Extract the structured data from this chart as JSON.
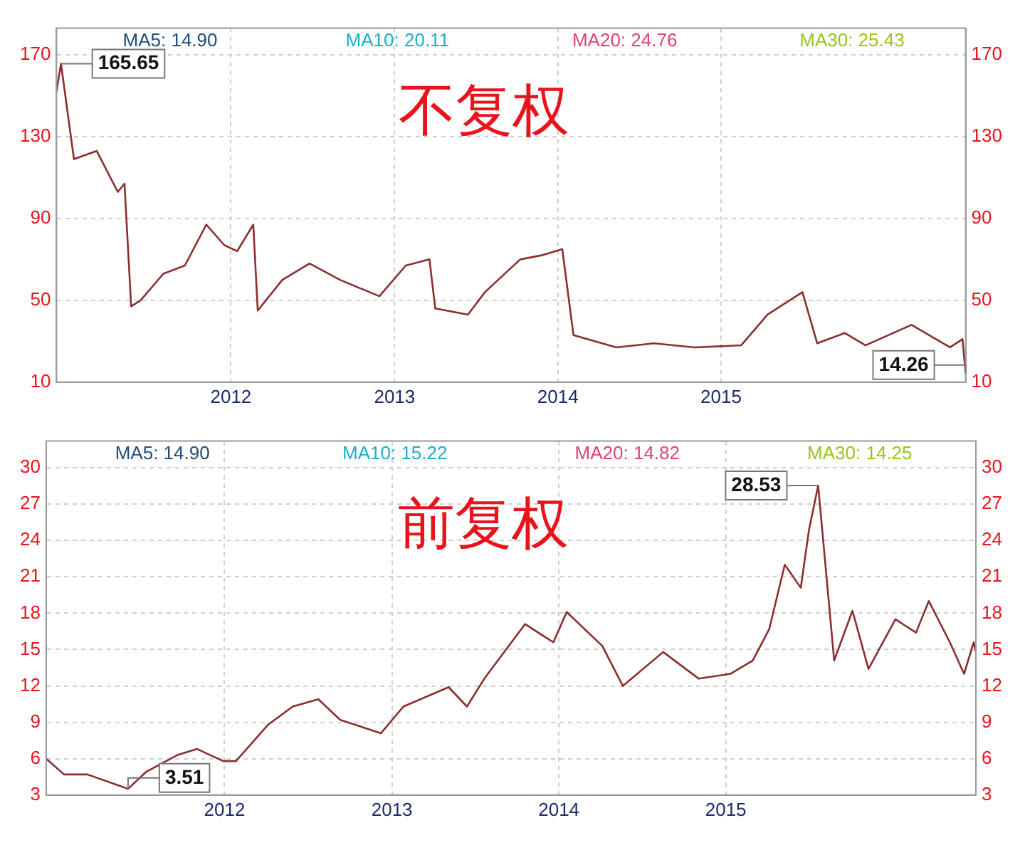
{
  "chart_data": [
    {
      "type": "line",
      "title": "不复权",
      "xlim": [
        "2010-12-07",
        "2016-07-01"
      ],
      "xticks": [
        "2012",
        "2013",
        "2014",
        "2015"
      ],
      "ylim": [
        10,
        183
      ],
      "yticks": [
        10,
        50,
        90,
        130,
        170
      ],
      "y2lim": [
        10,
        183
      ],
      "y2ticks": [
        10,
        50,
        90,
        130,
        170
      ],
      "grid": true,
      "legend": false,
      "marker": "none",
      "series": [
        {
          "color": "#8b2e2e",
          "x": [
            "2010-12-07",
            "2010-12-17",
            "2011-01-15",
            "2011-03-07",
            "2011-04-23",
            "2011-05-08",
            "2011-05-23",
            "2011-06-13",
            "2011-08-03",
            "2011-09-20",
            "2011-11-07",
            "2011-12-17",
            "2012-01-15",
            "2012-02-20",
            "2012-03-01",
            "2012-04-25",
            "2012-06-25",
            "2012-09-01",
            "2012-11-28",
            "2013-01-26",
            "2013-03-20",
            "2013-04-02",
            "2013-06-14",
            "2013-07-22",
            "2013-10-09",
            "2013-11-26",
            "2014-01-11",
            "2014-02-05",
            "2014-05-12",
            "2014-08-04",
            "2014-11-03",
            "2015-02-15",
            "2015-04-15",
            "2015-07-02",
            "2015-08-04",
            "2015-10-05",
            "2015-11-20",
            "2016-03-02",
            "2016-05-27",
            "2016-06-24",
            "2016-07-01"
          ],
          "values": [
            152,
            165.65,
            119,
            123,
            103,
            107,
            47,
            50,
            63,
            67,
            87,
            77,
            74,
            87,
            45,
            60,
            68,
            60,
            52,
            67,
            70,
            46,
            43,
            54,
            70,
            72,
            75,
            33,
            27,
            29,
            27,
            28,
            43,
            54,
            29,
            34,
            28,
            38,
            27,
            31,
            14.26
          ]
        }
      ],
      "annotations": [
        "MA5: 14.90",
        "MA10: 20.11",
        "MA20: 24.76",
        "MA30: 25.43",
        {
          "text": "165.65",
          "x": "2010-12-17",
          "y": 165.65
        },
        {
          "text": "14.26",
          "x": "2016-07-01",
          "y": 14.26
        }
      ]
    },
    {
      "type": "line",
      "title": "前复权",
      "xlim": [
        "2010-12-07",
        "2016-07-01"
      ],
      "xticks": [
        "2012",
        "2013",
        "2014",
        "2015"
      ],
      "ylim": [
        3,
        32.2
      ],
      "yticks": [
        3,
        6,
        9,
        12,
        15,
        18,
        21,
        24,
        27,
        30
      ],
      "y2lim": [
        3,
        32.2
      ],
      "y2ticks": [
        3,
        6,
        9,
        12,
        15,
        18,
        21,
        24,
        27,
        30
      ],
      "grid": true,
      "legend": false,
      "marker": "none",
      "series": [
        {
          "color": "#8b2e2e",
          "x": [
            "2010-12-07",
            "2011-01-15",
            "2011-03-07",
            "2011-05-14",
            "2011-06-04",
            "2011-07-13",
            "2011-09-20",
            "2011-11-02",
            "2011-12-29",
            "2012-01-26",
            "2012-04-05",
            "2012-05-29",
            "2012-07-24",
            "2012-09-10",
            "2012-12-08",
            "2013-01-26",
            "2013-05-05",
            "2013-06-14",
            "2013-07-22",
            "2013-10-19",
            "2013-12-20",
            "2014-01-18",
            "2014-04-06",
            "2014-05-21",
            "2014-08-17",
            "2014-11-03",
            "2015-01-11",
            "2015-03-01",
            "2015-04-06",
            "2015-05-10",
            "2015-06-14",
            "2015-07-02",
            "2015-07-22",
            "2015-08-26",
            "2015-10-05",
            "2015-11-09",
            "2016-01-07",
            "2016-02-21",
            "2016-03-20",
            "2016-05-05",
            "2016-06-05",
            "2016-06-26",
            "2016-07-01"
          ],
          "values": [
            6.0,
            4.7,
            4.7,
            3.8,
            3.51,
            4.9,
            6.3,
            6.8,
            5.8,
            5.8,
            8.8,
            10.3,
            10.9,
            9.2,
            8.1,
            10.3,
            11.9,
            10.3,
            12.6,
            17.1,
            15.6,
            18.1,
            15.3,
            12.0,
            14.8,
            12.6,
            13.0,
            14.1,
            16.7,
            22.0,
            20.1,
            24.9,
            28.53,
            14.1,
            18.2,
            13.4,
            17.5,
            16.4,
            19.0,
            15.6,
            13.0,
            15.6,
            14.8
          ]
        }
      ],
      "annotations": [
        "MA5: 14.90",
        "MA10: 15.22",
        "MA20: 14.82",
        "MA30: 14.25",
        {
          "text": "3.51",
          "x": "2011-06-04",
          "y": 3.51
        },
        {
          "text": "28.53",
          "x": "2015-07-22",
          "y": 28.53
        }
      ]
    }
  ]
}
